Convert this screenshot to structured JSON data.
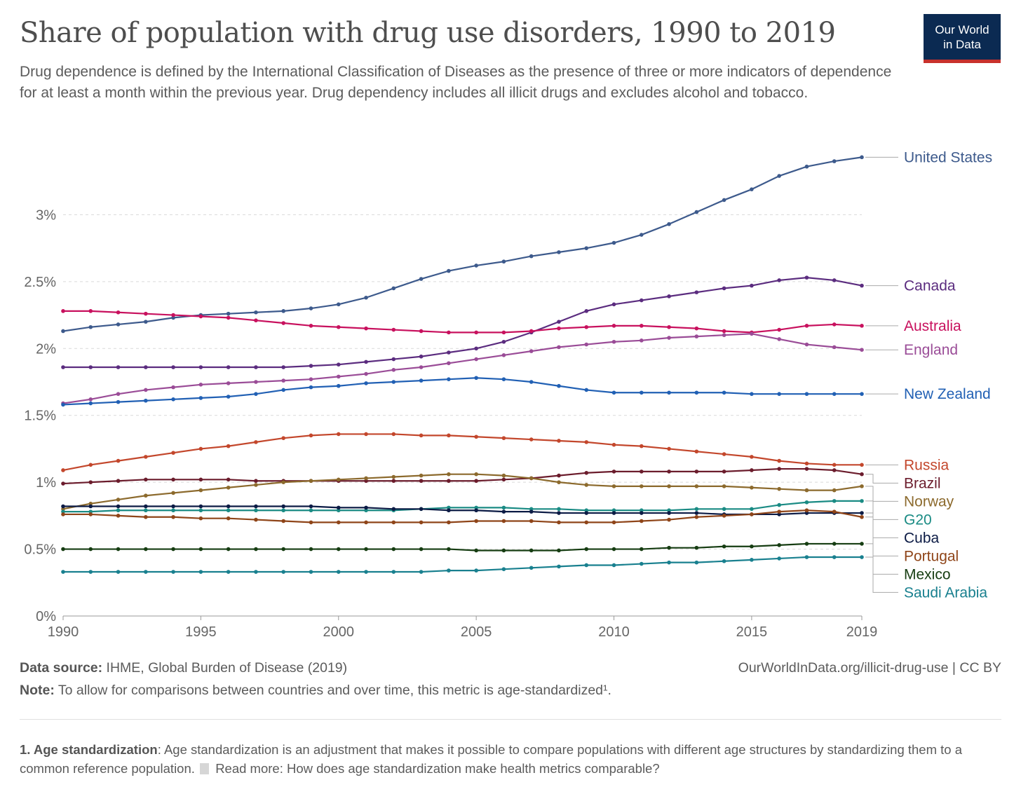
{
  "header": {
    "title": "Share of population with drug use disorders, 1990 to 2019",
    "subtitle": "Drug dependence is defined by the International Classification of Diseases as the presence of three or more indicators of dependence for at least a month within the previous year. Drug dependency includes all illicit drugs and excludes alcohol and tobacco.",
    "logo_line1": "Our World",
    "logo_line2": "in Data",
    "logo_colors": {
      "background": "#0b2a52",
      "stripe": "#c8312c"
    }
  },
  "footer": {
    "source_label": "Data source:",
    "source_text": "IHME, Global Burden of Disease (2019)",
    "credit": "OurWorldInData.org/illicit-drug-use | CC BY",
    "note_label": "Note:",
    "note_text": "To allow for comparisons between countries and over time, this metric is age-standardized¹.",
    "footnote_label": "1. Age standardization",
    "footnote_text": ": Age standardization is an adjustment that makes it possible to compare populations with different age structures by standardizing them to a common reference population.",
    "read_more": "Read more: How does age standardization make health metrics comparable?"
  },
  "chart_data": {
    "type": "line",
    "x": [
      1990,
      1991,
      1992,
      1993,
      1994,
      1995,
      1996,
      1997,
      1998,
      1999,
      2000,
      2001,
      2002,
      2003,
      2004,
      2005,
      2006,
      2007,
      2008,
      2009,
      2010,
      2011,
      2012,
      2013,
      2014,
      2015,
      2016,
      2017,
      2018,
      2019
    ],
    "xlim": [
      1990,
      2019
    ],
    "ylim": [
      0,
      3.5
    ],
    "x_ticks": [
      1990,
      1995,
      2000,
      2005,
      2010,
      2015,
      2019
    ],
    "x_tick_labels": [
      "1990",
      "1995",
      "2000",
      "2005",
      "2010",
      "2015",
      "2019"
    ],
    "y_ticks": [
      0,
      0.5,
      1,
      1.5,
      2,
      2.5,
      3
    ],
    "y_tick_labels": [
      "0%",
      "0.5%",
      "1%",
      "1.5%",
      "2%",
      "2.5%",
      "3%"
    ],
    "grid": "horizontal dashed",
    "legend": "inline labels at right end of lines",
    "series": [
      {
        "name": "United States",
        "color": "#3d5a8c",
        "values": [
          2.13,
          2.16,
          2.18,
          2.2,
          2.23,
          2.25,
          2.26,
          2.27,
          2.28,
          2.3,
          2.33,
          2.38,
          2.45,
          2.52,
          2.58,
          2.62,
          2.65,
          2.69,
          2.72,
          2.75,
          2.79,
          2.85,
          2.93,
          3.02,
          3.11,
          3.19,
          3.29,
          3.36,
          3.4,
          3.43
        ]
      },
      {
        "name": "Canada",
        "color": "#5b2c7f",
        "values": [
          1.86,
          1.86,
          1.86,
          1.86,
          1.86,
          1.86,
          1.86,
          1.86,
          1.86,
          1.87,
          1.88,
          1.9,
          1.92,
          1.94,
          1.97,
          2.0,
          2.05,
          2.12,
          2.2,
          2.28,
          2.33,
          2.36,
          2.39,
          2.42,
          2.45,
          2.47,
          2.51,
          2.53,
          2.51,
          2.47
        ]
      },
      {
        "name": "Australia",
        "color": "#c8115e",
        "values": [
          2.28,
          2.28,
          2.27,
          2.26,
          2.25,
          2.24,
          2.23,
          2.21,
          2.19,
          2.17,
          2.16,
          2.15,
          2.14,
          2.13,
          2.12,
          2.12,
          2.12,
          2.13,
          2.15,
          2.16,
          2.17,
          2.17,
          2.16,
          2.15,
          2.13,
          2.12,
          2.14,
          2.17,
          2.18,
          2.17
        ]
      },
      {
        "name": "England",
        "color": "#9a4c97",
        "values": [
          1.59,
          1.62,
          1.66,
          1.69,
          1.71,
          1.73,
          1.74,
          1.75,
          1.76,
          1.77,
          1.79,
          1.81,
          1.84,
          1.86,
          1.89,
          1.92,
          1.95,
          1.98,
          2.01,
          2.03,
          2.05,
          2.06,
          2.08,
          2.09,
          2.1,
          2.11,
          2.07,
          2.03,
          2.01,
          1.99
        ]
      },
      {
        "name": "New Zealand",
        "color": "#2160b4",
        "values": [
          1.58,
          1.59,
          1.6,
          1.61,
          1.62,
          1.63,
          1.64,
          1.66,
          1.69,
          1.71,
          1.72,
          1.74,
          1.75,
          1.76,
          1.77,
          1.78,
          1.77,
          1.75,
          1.72,
          1.69,
          1.67,
          1.67,
          1.67,
          1.67,
          1.67,
          1.66,
          1.66,
          1.66,
          1.66,
          1.66
        ]
      },
      {
        "name": "Russia",
        "color": "#c3472c",
        "values": [
          1.09,
          1.13,
          1.16,
          1.19,
          1.22,
          1.25,
          1.27,
          1.3,
          1.33,
          1.35,
          1.36,
          1.36,
          1.36,
          1.35,
          1.35,
          1.34,
          1.33,
          1.32,
          1.31,
          1.3,
          1.28,
          1.27,
          1.25,
          1.23,
          1.21,
          1.19,
          1.16,
          1.14,
          1.13,
          1.13
        ]
      },
      {
        "name": "Brazil",
        "color": "#6b1c2c",
        "values": [
          0.99,
          1.0,
          1.01,
          1.02,
          1.02,
          1.02,
          1.02,
          1.01,
          1.01,
          1.01,
          1.01,
          1.01,
          1.01,
          1.01,
          1.01,
          1.01,
          1.02,
          1.03,
          1.05,
          1.07,
          1.08,
          1.08,
          1.08,
          1.08,
          1.08,
          1.09,
          1.1,
          1.1,
          1.09,
          1.06
        ]
      },
      {
        "name": "Norway",
        "color": "#8c6a2d",
        "values": [
          0.8,
          0.84,
          0.87,
          0.9,
          0.92,
          0.94,
          0.96,
          0.98,
          1.0,
          1.01,
          1.02,
          1.03,
          1.04,
          1.05,
          1.06,
          1.06,
          1.05,
          1.03,
          1.0,
          0.98,
          0.97,
          0.97,
          0.97,
          0.97,
          0.97,
          0.96,
          0.95,
          0.94,
          0.94,
          0.97
        ]
      },
      {
        "name": "G20",
        "color": "#1a8b84",
        "values": [
          0.78,
          0.78,
          0.79,
          0.79,
          0.79,
          0.79,
          0.79,
          0.79,
          0.79,
          0.79,
          0.79,
          0.79,
          0.79,
          0.8,
          0.81,
          0.81,
          0.81,
          0.8,
          0.8,
          0.79,
          0.79,
          0.79,
          0.79,
          0.8,
          0.8,
          0.8,
          0.83,
          0.85,
          0.86,
          0.86
        ]
      },
      {
        "name": "Cuba",
        "color": "#0c1b45",
        "values": [
          0.82,
          0.82,
          0.82,
          0.82,
          0.82,
          0.82,
          0.82,
          0.82,
          0.82,
          0.82,
          0.81,
          0.81,
          0.8,
          0.8,
          0.79,
          0.79,
          0.78,
          0.78,
          0.77,
          0.77,
          0.77,
          0.77,
          0.77,
          0.77,
          0.76,
          0.76,
          0.76,
          0.77,
          0.77,
          0.77
        ]
      },
      {
        "name": "Portugal",
        "color": "#8f4519",
        "values": [
          0.76,
          0.76,
          0.75,
          0.74,
          0.74,
          0.73,
          0.73,
          0.72,
          0.71,
          0.7,
          0.7,
          0.7,
          0.7,
          0.7,
          0.7,
          0.71,
          0.71,
          0.71,
          0.7,
          0.7,
          0.7,
          0.71,
          0.72,
          0.74,
          0.75,
          0.76,
          0.78,
          0.79,
          0.78,
          0.74
        ]
      },
      {
        "name": "Mexico",
        "color": "#163d12",
        "values": [
          0.5,
          0.5,
          0.5,
          0.5,
          0.5,
          0.5,
          0.5,
          0.5,
          0.5,
          0.5,
          0.5,
          0.5,
          0.5,
          0.5,
          0.5,
          0.49,
          0.49,
          0.49,
          0.49,
          0.5,
          0.5,
          0.5,
          0.51,
          0.51,
          0.52,
          0.52,
          0.53,
          0.54,
          0.54,
          0.54
        ]
      },
      {
        "name": "Saudi Arabia",
        "color": "#19808f",
        "values": [
          0.33,
          0.33,
          0.33,
          0.33,
          0.33,
          0.33,
          0.33,
          0.33,
          0.33,
          0.33,
          0.33,
          0.33,
          0.33,
          0.33,
          0.34,
          0.34,
          0.35,
          0.36,
          0.37,
          0.38,
          0.38,
          0.39,
          0.4,
          0.4,
          0.41,
          0.42,
          0.43,
          0.44,
          0.44,
          0.44
        ]
      }
    ]
  }
}
